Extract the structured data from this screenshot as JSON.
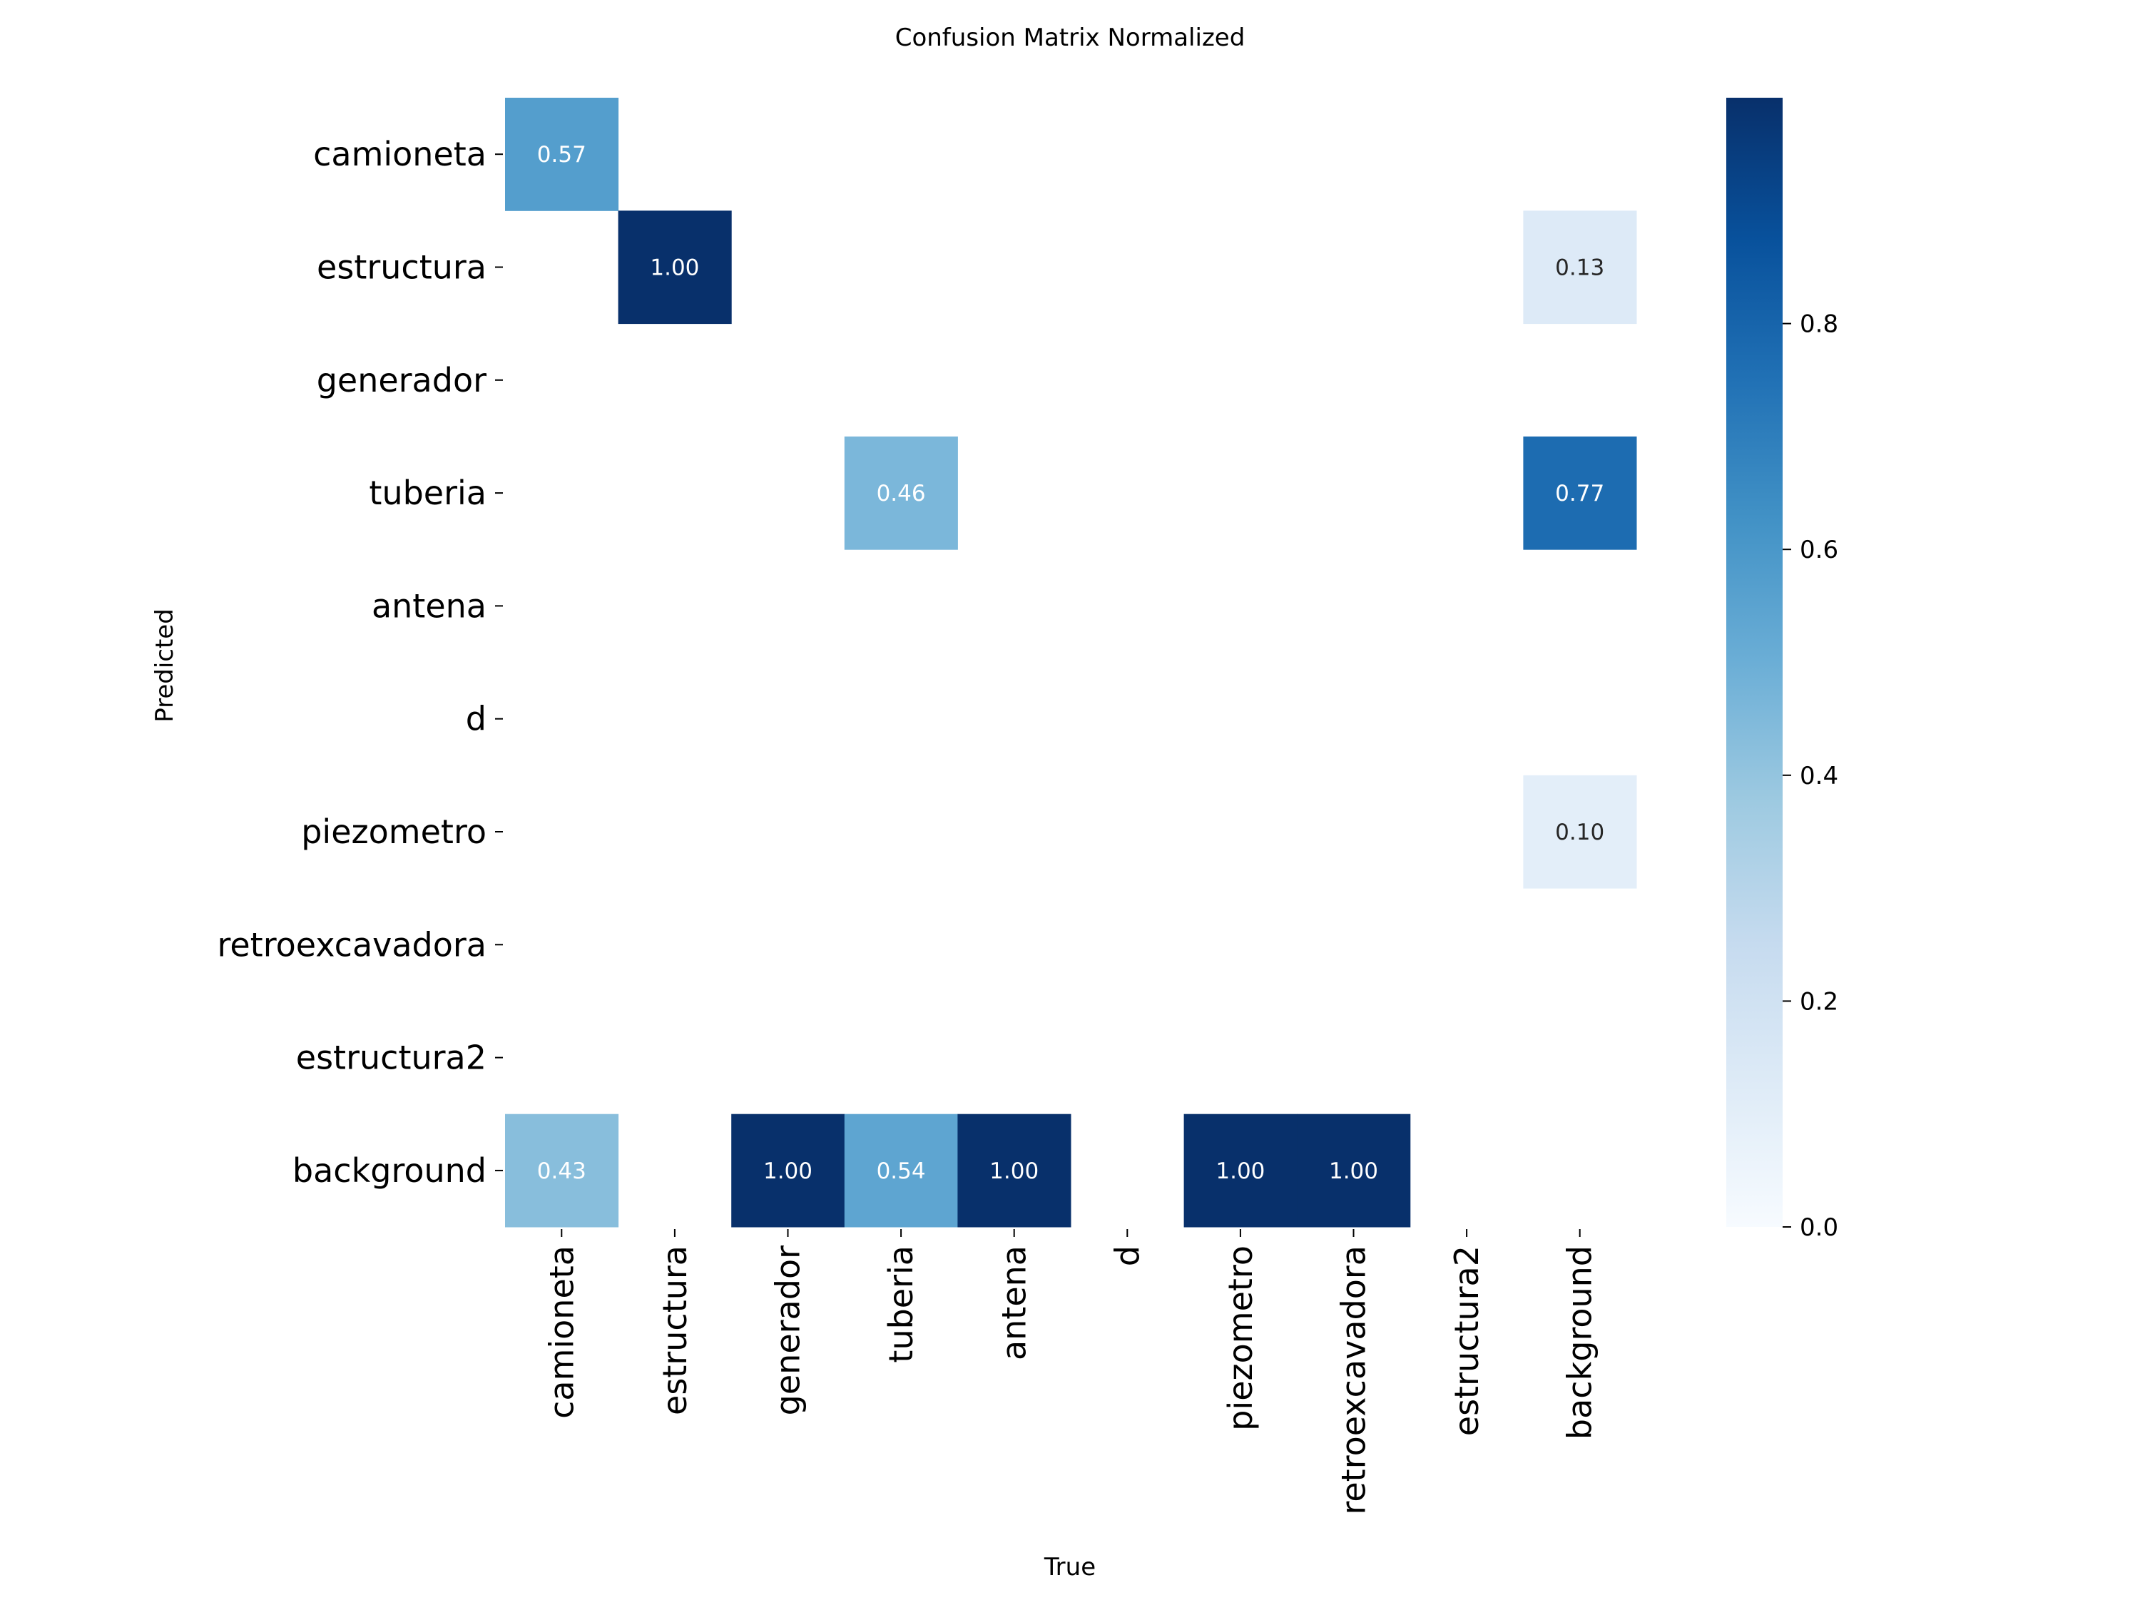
{
  "chart_data": {
    "type": "heatmap",
    "title": "Confusion Matrix Normalized",
    "xlabel": "True",
    "ylabel": "Predicted",
    "x_categories": [
      "camioneta",
      "estructura",
      "generador",
      "tuberia",
      "antena",
      "d",
      "piezometro",
      "retroexcavadora",
      "estructura2",
      "background"
    ],
    "y_categories": [
      "camioneta",
      "estructura",
      "generador",
      "tuberia",
      "antena",
      "d",
      "piezometro",
      "retroexcavadora",
      "estructura2",
      "background"
    ],
    "values": [
      [
        0.57,
        null,
        null,
        null,
        null,
        null,
        null,
        null,
        null,
        null
      ],
      [
        null,
        1.0,
        null,
        null,
        null,
        null,
        null,
        null,
        null,
        0.13
      ],
      [
        null,
        null,
        null,
        null,
        null,
        null,
        null,
        null,
        null,
        null
      ],
      [
        null,
        null,
        null,
        0.46,
        null,
        null,
        null,
        null,
        null,
        0.77
      ],
      [
        null,
        null,
        null,
        null,
        null,
        null,
        null,
        null,
        null,
        null
      ],
      [
        null,
        null,
        null,
        null,
        null,
        null,
        null,
        null,
        null,
        null
      ],
      [
        null,
        null,
        null,
        null,
        null,
        null,
        null,
        null,
        null,
        0.1
      ],
      [
        null,
        null,
        null,
        null,
        null,
        null,
        null,
        null,
        null,
        null
      ],
      [
        null,
        null,
        null,
        null,
        null,
        null,
        null,
        null,
        null,
        null
      ],
      [
        0.43,
        null,
        1.0,
        0.54,
        1.0,
        null,
        1.0,
        1.0,
        null,
        null
      ]
    ],
    "colormap": "Blues",
    "colorbar": {
      "range": [
        0,
        1.0
      ],
      "ticks": [
        0.0,
        0.2,
        0.4,
        0.6,
        0.8
      ]
    },
    "grid": false
  }
}
